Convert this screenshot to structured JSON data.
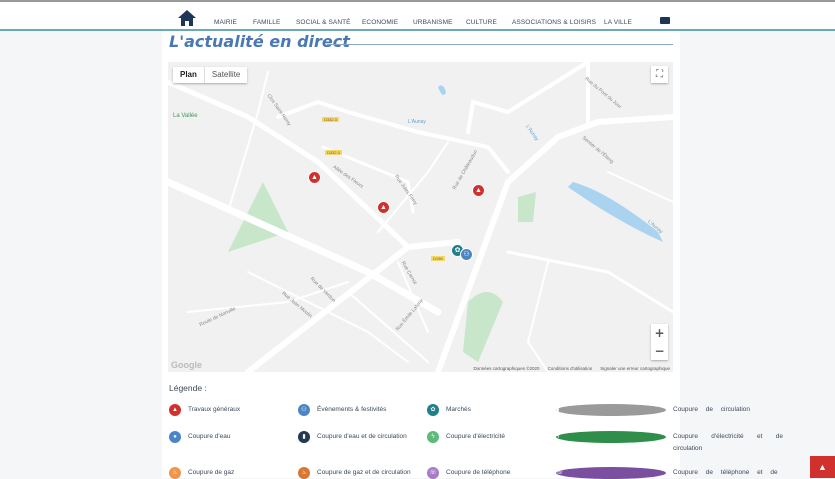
{
  "nav": {
    "items": [
      "MAIRIE",
      "FAMILLE",
      "SOCIAL & SANTÉ",
      "ECONOMIE",
      "URBANISME",
      "CULTURE",
      "ASSOCIATIONS & LOISIRS",
      "LA VILLE"
    ],
    "home_icon": "home-icon",
    "mail_icon": "envelope-icon"
  },
  "section_title": "L'actualité en direct",
  "map": {
    "type_plan": "Plan",
    "type_satellite": "Satellite",
    "selected_type": "Plan",
    "zoom_in": "+",
    "zoom_out": "−",
    "logo": "Google",
    "attribution": [
      "Données cartographiques ©2020",
      "Conditions d'utilisation",
      "Signaler une erreur cartographique"
    ],
    "labels": {
      "village": "La Vallée",
      "river1": "L'Aunay",
      "river2": "L'Aunay",
      "river3": "L'Aunay",
      "road1": "D332.3",
      "road2": "D332.3",
      "road3": "D198",
      "s1": "Allée des Fleurs",
      "s2": "Rue Jules Ferry",
      "s3": "Rue de Verdun",
      "s4": "Rue Jean Moulin",
      "s5": "Rue Carnot",
      "s6": "Rue Émile Laforie",
      "s7": "Rue de Châteaudun",
      "s8": "Route de Nonville",
      "s9": "Clos Saint-Remy",
      "s10": "Rue du Pont du Jour",
      "s11": "Sentier de l'Étang"
    },
    "marker_colors": {
      "travaux": "#d0312d",
      "marches": "#1f7f8a",
      "evenements": "#4a86c5"
    }
  },
  "legend": {
    "title": "Légende :",
    "items": [
      {
        "label": "Travaux généraux",
        "color": "#d0312d",
        "icon": "traffic-cone-icon"
      },
      {
        "label": "Évènements & festivités",
        "color": "#4a86c5",
        "icon": "people-icon"
      },
      {
        "label": "Marchés",
        "color": "#1f7f8a",
        "icon": "basket-icon"
      },
      {
        "label": "Coupure de circulation",
        "color": "#9a9a9a",
        "icon": "road-block-icon"
      },
      {
        "label": "Coupure d'eau",
        "color": "#4a86c5",
        "icon": "water-drop-icon"
      },
      {
        "label": "Coupure d'eau et de circulation",
        "color": "#24384f",
        "icon": "water-road-icon"
      },
      {
        "label": "Coupure d'électricité",
        "color": "#5dbb7a",
        "icon": "lightning-icon"
      },
      {
        "label": "Coupure d'électricité et de circulation",
        "color": "#2f8f4a",
        "icon": "lightning-road-icon"
      },
      {
        "label": "Coupure de gaz",
        "color": "#f0954a",
        "icon": "flame-icon"
      },
      {
        "label": "Coupure de gaz et de circulation",
        "color": "#d9762f",
        "icon": "flame-road-icon"
      },
      {
        "label": "Coupure de téléphone",
        "color": "#a77cc7",
        "icon": "phone-icon"
      },
      {
        "label": "Coupure de téléphone et de",
        "color": "#7a4fa0",
        "icon": "phone-road-icon"
      }
    ]
  },
  "scroll_top_icon": "chevron-up-icon"
}
